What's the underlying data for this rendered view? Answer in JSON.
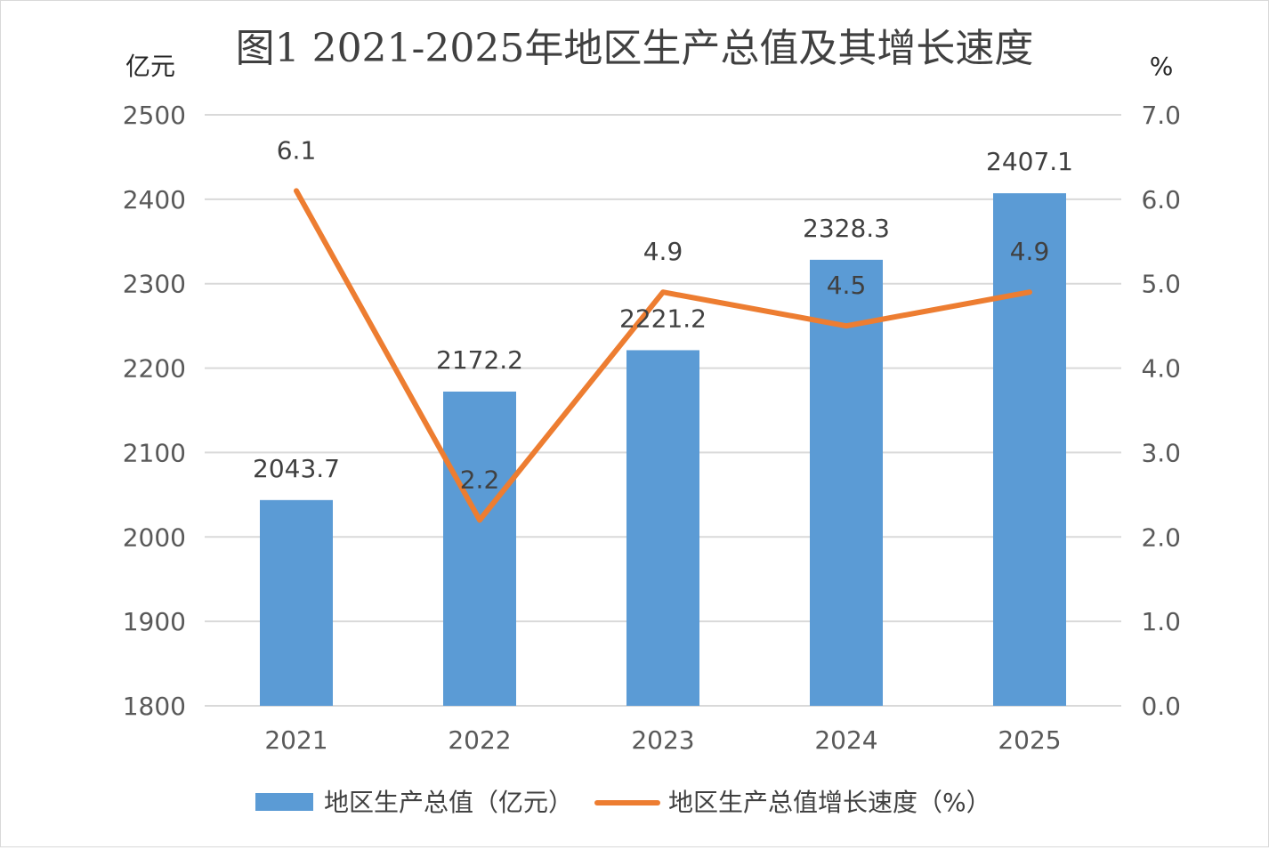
{
  "chart_data": {
    "type": "bar",
    "title": "图1 2021-2025年地区生产总值及其增长速度",
    "categories": [
      "2021",
      "2022",
      "2023",
      "2024",
      "2025"
    ],
    "y_left_unit": "亿元",
    "y_right_unit": "%",
    "y_left_ticks": [
      "2500",
      "2400",
      "2300",
      "2200",
      "2100",
      "2000",
      "1900",
      "1800"
    ],
    "y_right_ticks": [
      "7.0",
      "6.0",
      "5.0",
      "4.0",
      "3.0",
      "2.0",
      "1.0",
      "0.0"
    ],
    "y_left_range": [
      1800,
      2500
    ],
    "y_right_range": [
      0,
      7
    ],
    "grid": true,
    "legend_position": "bottom",
    "series": [
      {
        "name": "地区生产总值（亿元）",
        "type": "bar",
        "axis": "left",
        "color": "#5b9bd5",
        "values": [
          2043.7,
          2172.2,
          2221.2,
          2328.3,
          2407.1
        ],
        "labels": [
          "2043.7",
          "2172.2",
          "2221.2",
          "2328.3",
          "2407.1"
        ]
      },
      {
        "name": "地区生产总值增长速度（%）",
        "type": "line",
        "axis": "right",
        "color": "#ed7d31",
        "values": [
          6.1,
          2.2,
          4.9,
          4.5,
          4.9
        ],
        "labels": [
          "6.1",
          "2.2",
          "4.9",
          "4.5",
          "4.9"
        ]
      }
    ]
  }
}
